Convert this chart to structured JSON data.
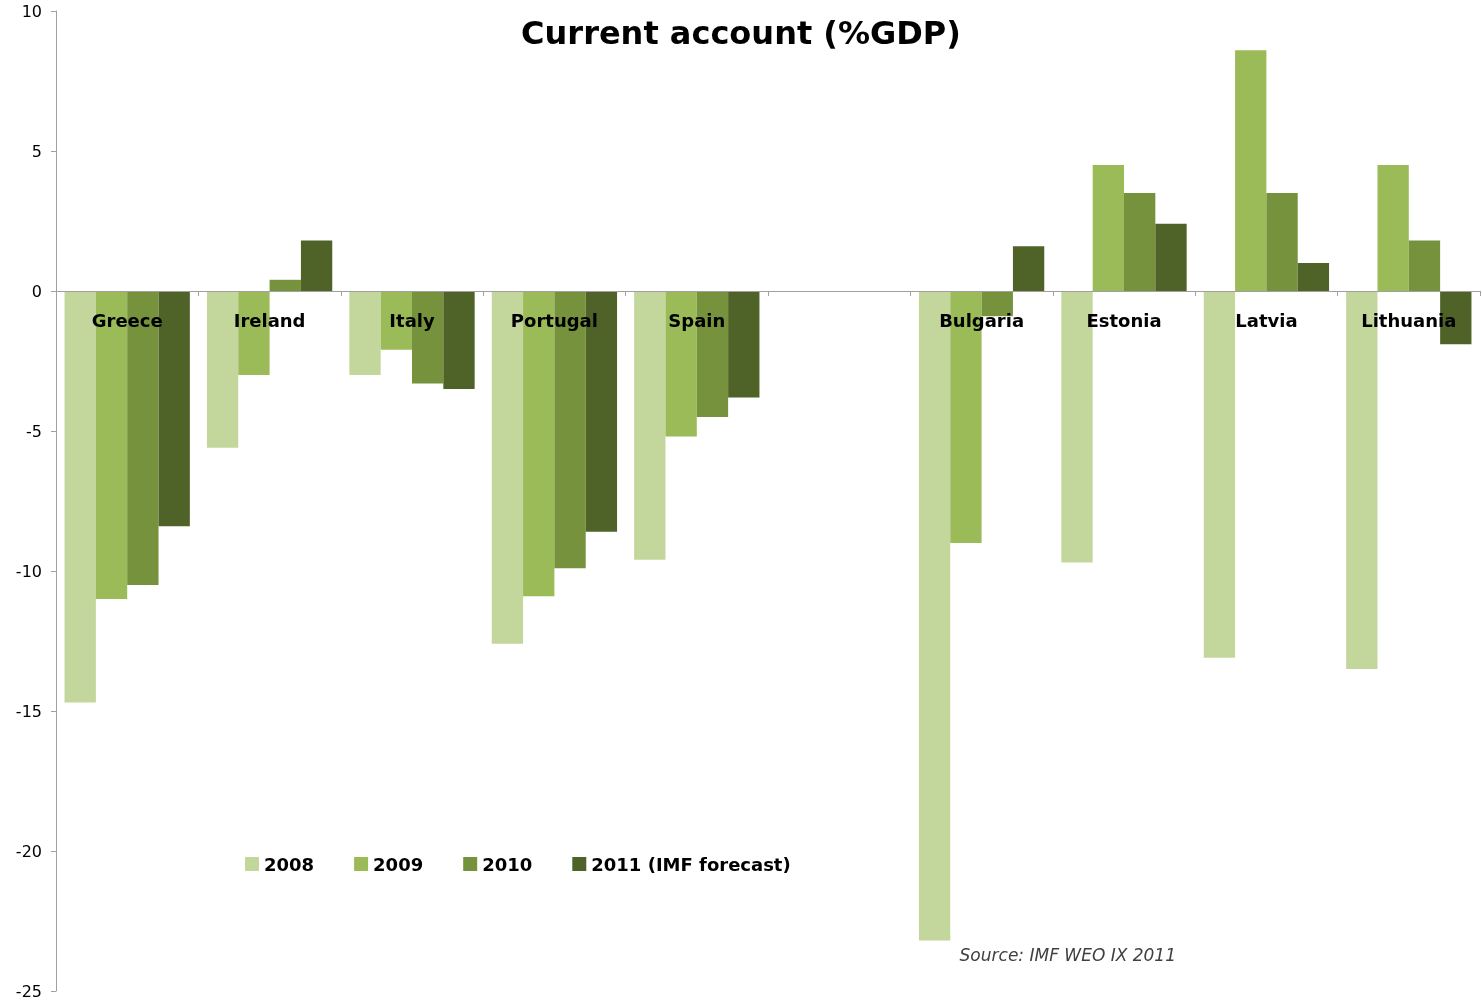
{
  "chart_data": {
    "type": "bar",
    "title": "Current account (%GDP)",
    "categories": [
      "Greece",
      "Ireland",
      "Italy",
      "Portugal",
      "Spain",
      null,
      "Bulgaria",
      "Estonia",
      "Latvia",
      "Lithuania"
    ],
    "series": [
      {
        "name": "2008",
        "color": "#c3d69b",
        "values": [
          -14.7,
          -5.6,
          -3.0,
          -12.6,
          -9.6,
          null,
          -23.2,
          -9.7,
          -13.1,
          -13.5
        ]
      },
      {
        "name": "2009",
        "color": "#9bbb59",
        "values": [
          -11.0,
          -3.0,
          -2.1,
          -10.9,
          -5.2,
          null,
          -9.0,
          4.5,
          8.6,
          4.5
        ]
      },
      {
        "name": "2010",
        "color": "#76923c",
        "values": [
          -10.5,
          0.4,
          -3.3,
          -9.9,
          -4.5,
          null,
          -0.9,
          3.5,
          3.5,
          1.8
        ]
      },
      {
        "name": "2011 (IMF forecast)",
        "color": "#4f6228",
        "values": [
          -8.4,
          1.8,
          -3.5,
          -8.6,
          -3.8,
          null,
          1.6,
          2.4,
          1.0,
          -1.9
        ]
      }
    ],
    "ylim": [
      -25,
      10
    ],
    "yticks": [
      -25,
      -20,
      -15,
      -10,
      -5,
      0,
      5,
      10
    ],
    "grid": false,
    "legend": "bottom left",
    "annotations": [
      "Source: IMF WEO IX 2011"
    ]
  }
}
